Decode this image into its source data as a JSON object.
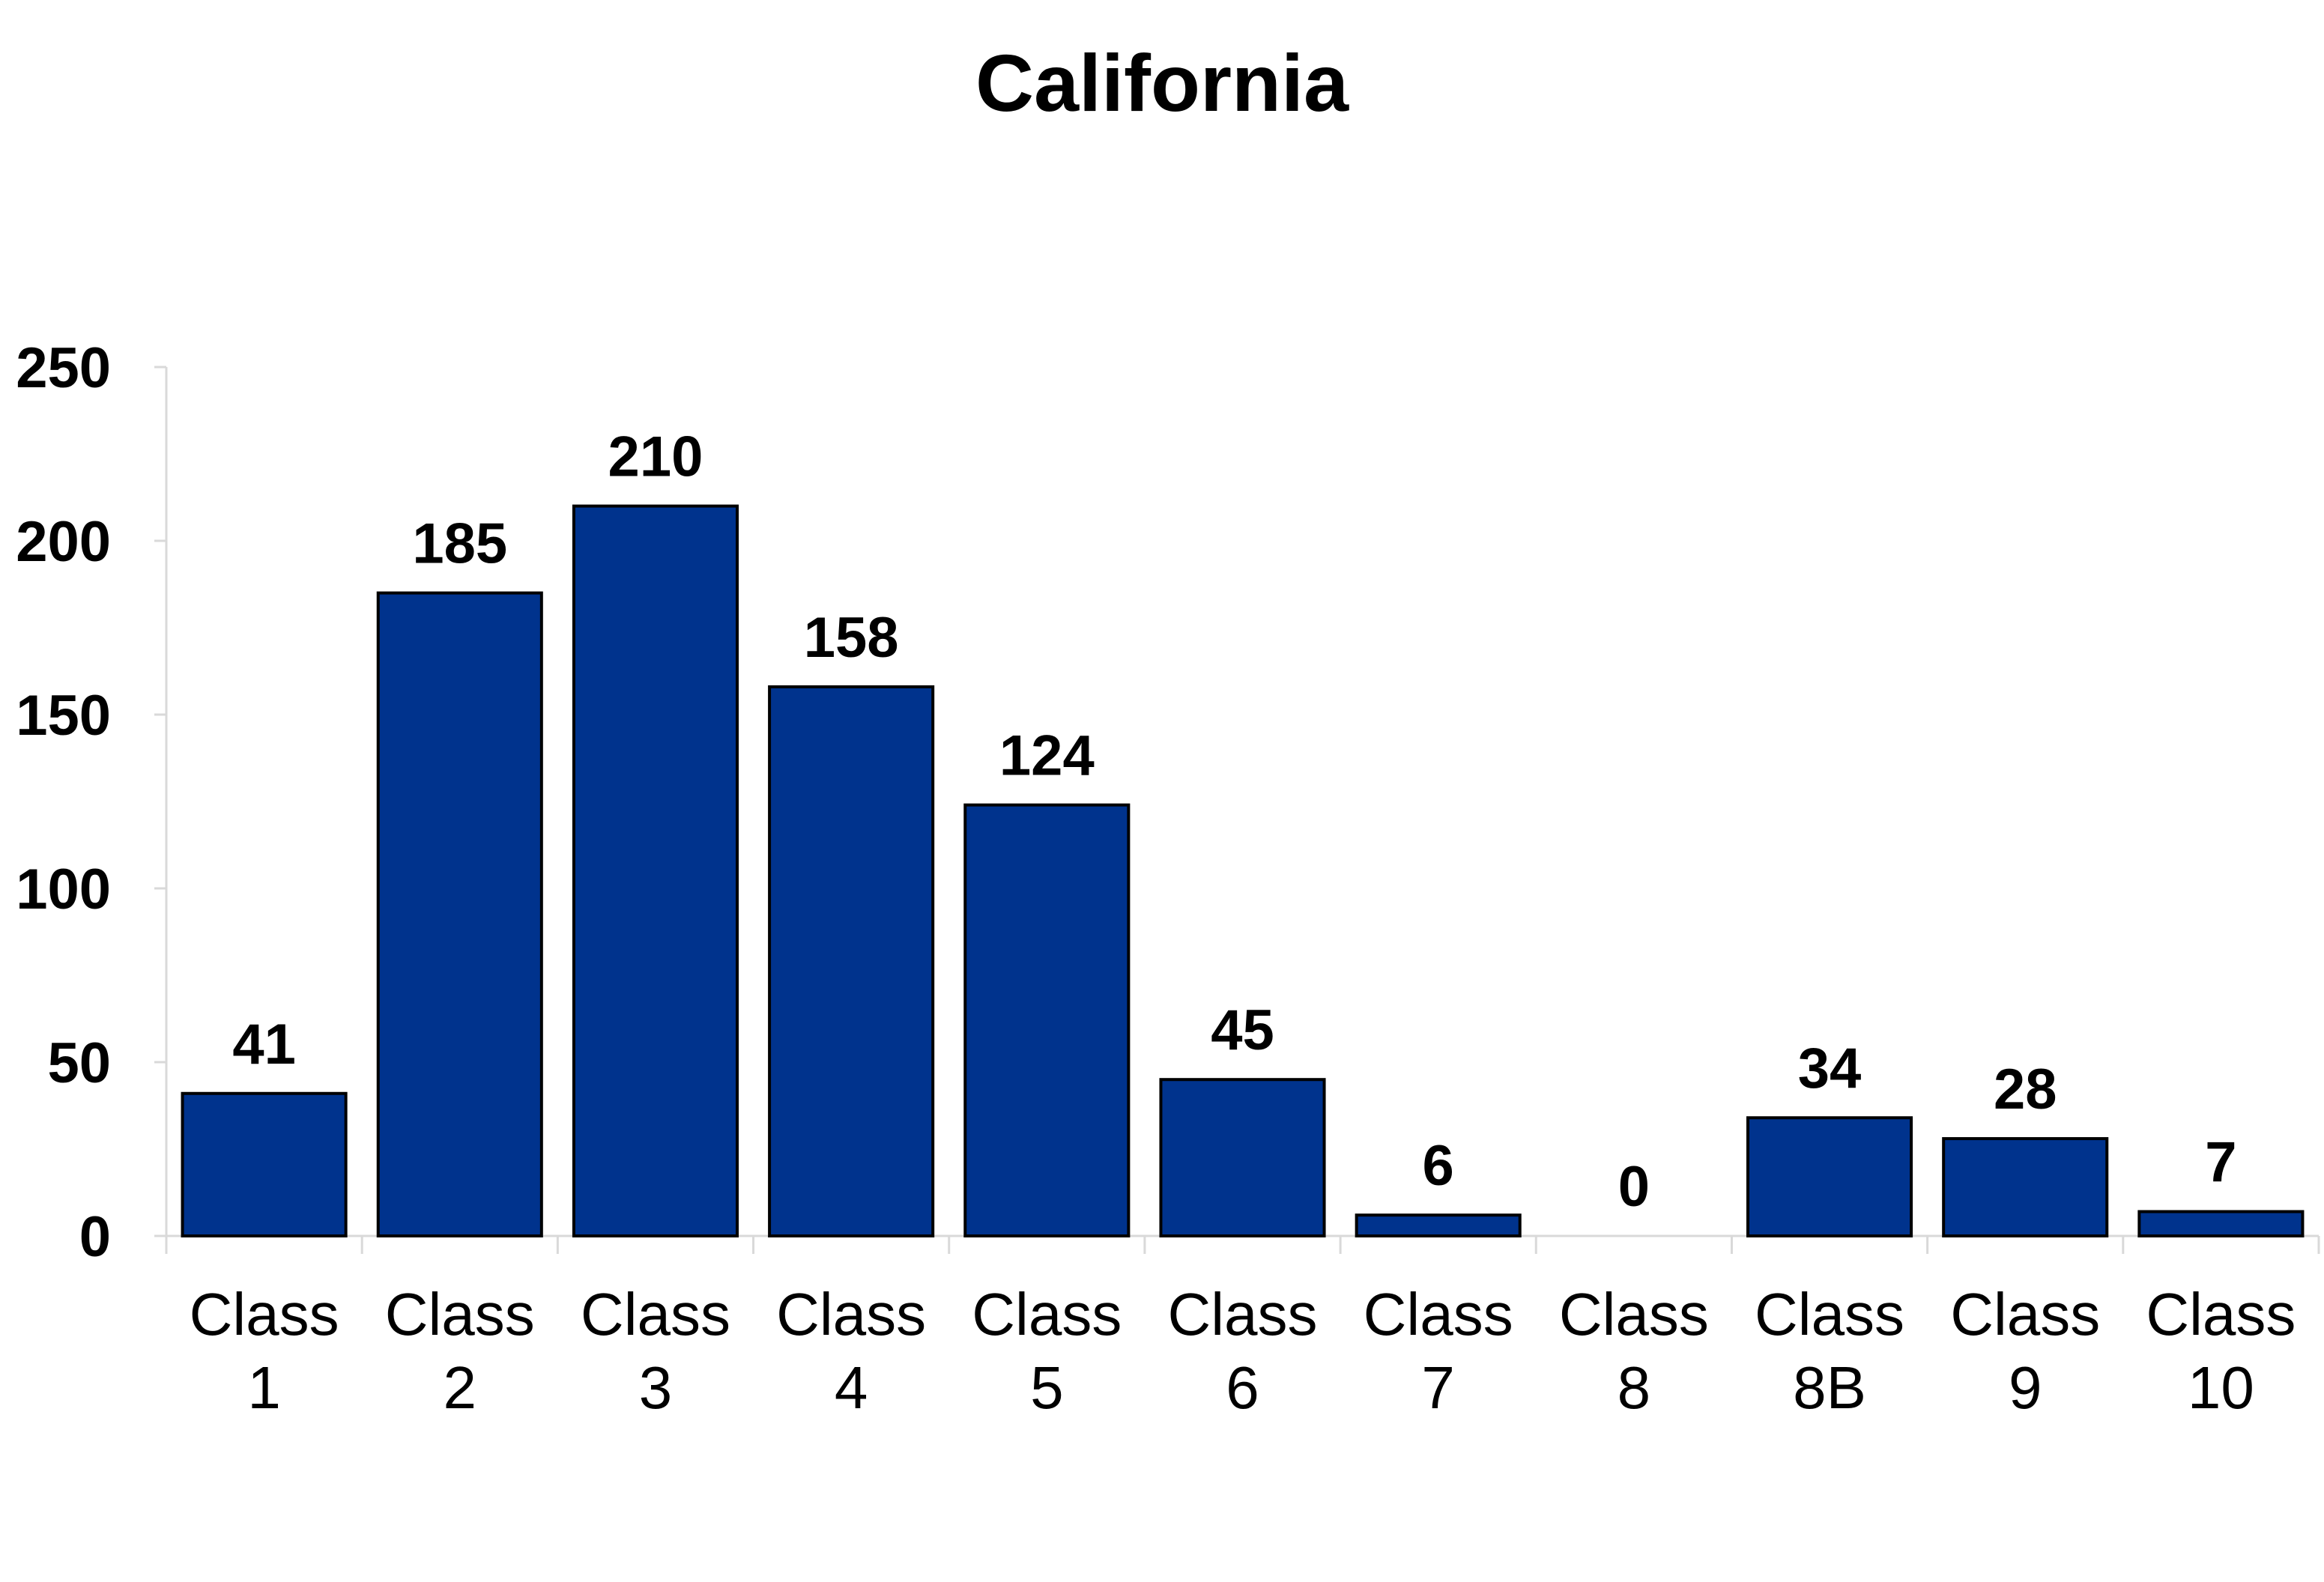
{
  "chart_data": {
    "type": "bar",
    "title": "California",
    "categories": [
      "Class 1",
      "Class 2",
      "Class 3",
      "Class 4",
      "Class 5",
      "Class 6",
      "Class 7",
      "Class 8",
      "Class 8B",
      "Class 9",
      "Class 10"
    ],
    "category_lines": [
      [
        "Class",
        "1"
      ],
      [
        "Class",
        "2"
      ],
      [
        "Class",
        "3"
      ],
      [
        "Class",
        "4"
      ],
      [
        "Class",
        "5"
      ],
      [
        "Class",
        "6"
      ],
      [
        "Class",
        "7"
      ],
      [
        "Class",
        "8"
      ],
      [
        "Class",
        "8B"
      ],
      [
        "Class",
        "9"
      ],
      [
        "Class",
        "10"
      ]
    ],
    "values": [
      41,
      185,
      210,
      158,
      124,
      45,
      6,
      0,
      34,
      28,
      7
    ],
    "ylim": [
      0,
      250
    ],
    "yticks": [
      "0",
      "50",
      "100",
      "150",
      "200",
      "250"
    ],
    "xlabel": "",
    "ylabel": "",
    "grid": false,
    "legend": "none",
    "data_labels": true,
    "colors": {
      "bar_fill": "#00338d",
      "bar_stroke": "#000000",
      "axis": "#d9d9d9",
      "text": "#000000"
    }
  }
}
